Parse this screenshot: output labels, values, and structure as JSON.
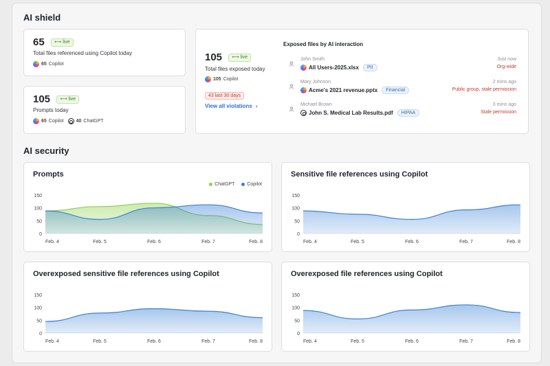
{
  "shield": {
    "title": "AI shield",
    "card1": {
      "count": "65",
      "live": "live",
      "label": "Total files referenced using Copilot today",
      "copilot_count": "65",
      "copilot_label": "Copilot"
    },
    "card2": {
      "count": "105",
      "live": "live",
      "label": "Prompts today",
      "copilot_count": "65",
      "copilot_label": "Copilot",
      "chatgpt_count": "40",
      "chatgpt_label": "ChatGPT"
    },
    "card3": {
      "count": "105",
      "live": "live",
      "label": "Total files exposed today",
      "copilot_count": "105",
      "copilot_label": "Copilot",
      "badge": "43 last 30 days",
      "link": "View all violations",
      "link_arrow": "›",
      "exposed_title": "Exposed files by AI interaction",
      "rows": [
        {
          "user": "John Smith",
          "file": "All Users-2025.xlsx",
          "tag": "PII",
          "time": "Just now",
          "status": "Org-wide",
          "icon": "copilot-icon"
        },
        {
          "user": "Mary Johnson",
          "file": "Acme's 2021 revenue.pptx",
          "tag": "Financial",
          "time": "2 mins ago",
          "status": "Public group, stale permission",
          "icon": "copilot-icon"
        },
        {
          "user": "Michael Brown",
          "file": "John S. Medical Lab Results.pdf",
          "tag": "HIPAA",
          "time": "3 mins ago",
          "status": "Stale permission",
          "icon": "chatgpt-icon"
        }
      ]
    }
  },
  "security": {
    "title": "AI security"
  },
  "colors": {
    "copilot": "#3b82d6",
    "chatgpt": "#8fd14f",
    "red": "#c0392b",
    "link": "#2e6fd8"
  },
  "chart_data": [
    {
      "type": "area",
      "title": "Prompts",
      "categories": [
        "Feb. 4",
        "Feb. 5",
        "Feb. 6",
        "Feb. 7",
        "Feb. 8"
      ],
      "yticks": [
        0,
        50,
        100,
        150
      ],
      "ylim": [
        0,
        150
      ],
      "legend": "top-right",
      "series": [
        {
          "name": "ChatGPT",
          "color": "#8fd14f",
          "values": [
            88,
            105,
            118,
            70,
            35
          ]
        },
        {
          "name": "Copilot",
          "color": "#3b82d6",
          "values": [
            88,
            55,
            100,
            112,
            80
          ]
        }
      ]
    },
    {
      "type": "area",
      "title": "Sensitive file references using Copilot",
      "categories": [
        "Feb. 4",
        "Feb. 5",
        "Feb. 6",
        "Feb. 7",
        "Feb. 8"
      ],
      "yticks": [
        0,
        50,
        100,
        150
      ],
      "ylim": [
        0,
        150
      ],
      "series": [
        {
          "color": "#3b82d6",
          "values": [
            88,
            75,
            55,
            92,
            112
          ]
        }
      ]
    },
    {
      "type": "area",
      "title": "Overexposed sensitive file references using Copilot",
      "categories": [
        "Feb. 4",
        "Feb. 5",
        "Feb. 6",
        "Feb. 7",
        "Feb. 8"
      ],
      "yticks": [
        0,
        50,
        100,
        150
      ],
      "ylim": [
        0,
        150
      ],
      "series": [
        {
          "color": "#3b82d6",
          "values": [
            45,
            78,
            95,
            85,
            60
          ]
        }
      ]
    },
    {
      "type": "area",
      "title": "Overexposed file references using Copilot",
      "categories": [
        "Feb. 4",
        "Feb. 5",
        "Feb. 6",
        "Feb. 7",
        "Feb. 8"
      ],
      "yticks": [
        0,
        50,
        100,
        150
      ],
      "ylim": [
        0,
        150
      ],
      "series": [
        {
          "color": "#3b82d6",
          "values": [
            88,
            55,
            90,
            110,
            80
          ]
        }
      ]
    }
  ]
}
